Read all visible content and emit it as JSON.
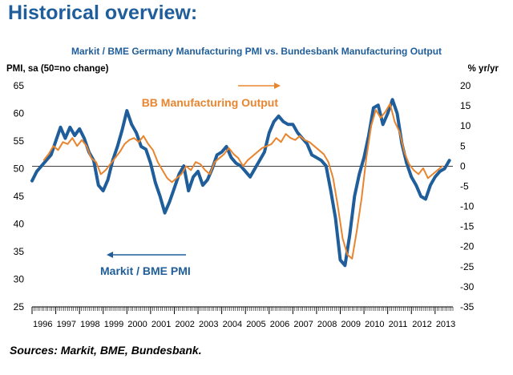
{
  "page": {
    "heading": "Historical overview:",
    "sources": "Sources: Markit, BME, Bundesbank."
  },
  "chart_data": {
    "type": "line",
    "title": "Markit / BME Germany Manufacturing PMI vs. Bundesbank Manufacturing Output",
    "ylabel": "PMI, sa (50=no change)",
    "y2label": "% yr/yr",
    "ylim": [
      25,
      65
    ],
    "y2lim": [
      -35,
      20
    ],
    "yticks": [
      "25",
      "30",
      "35",
      "40",
      "45",
      "50",
      "55",
      "60",
      "65"
    ],
    "y2ticks": [
      "-35",
      "-30",
      "-25",
      "-20",
      "-15",
      "-10",
      "-5",
      "0",
      "5",
      "10",
      "15",
      "20"
    ],
    "xlim": [
      1996.0,
      2013.75
    ],
    "xticks": [
      "1996",
      "1997",
      "1998",
      "1999",
      "2000",
      "2001",
      "2002",
      "2003",
      "2004",
      "2005",
      "2006",
      "2007",
      "2008",
      "2009",
      "2010",
      "2011",
      "2012",
      "2013"
    ],
    "series": [
      {
        "name": "Markit / BME PMI",
        "axis": "left",
        "color": "#1f5e9a",
        "label": "Markit / BME PMI",
        "label_arrow": "left",
        "x": [
          1996.0,
          1996.2,
          1996.4,
          1996.6,
          1996.8,
          1997.0,
          1997.2,
          1997.4,
          1997.6,
          1997.8,
          1998.0,
          1998.2,
          1998.4,
          1998.6,
          1998.8,
          1999.0,
          1999.2,
          1999.4,
          1999.6,
          1999.8,
          2000.0,
          2000.2,
          2000.4,
          2000.6,
          2000.8,
          2001.0,
          2001.2,
          2001.4,
          2001.6,
          2001.8,
          2002.0,
          2002.2,
          2002.4,
          2002.6,
          2002.8,
          2003.0,
          2003.2,
          2003.4,
          2003.6,
          2003.8,
          2004.0,
          2004.2,
          2004.4,
          2004.6,
          2004.8,
          2005.0,
          2005.2,
          2005.4,
          2005.6,
          2005.8,
          2006.0,
          2006.2,
          2006.4,
          2006.6,
          2006.8,
          2007.0,
          2007.2,
          2007.4,
          2007.6,
          2007.8,
          2008.0,
          2008.2,
          2008.4,
          2008.6,
          2008.8,
          2009.0,
          2009.2,
          2009.4,
          2009.6,
          2009.8,
          2010.0,
          2010.2,
          2010.4,
          2010.6,
          2010.8,
          2011.0,
          2011.2,
          2011.4,
          2011.6,
          2011.8,
          2012.0,
          2012.2,
          2012.4,
          2012.6,
          2012.8,
          2013.0,
          2013.2,
          2013.4,
          2013.6
        ],
        "values": [
          47.8,
          49.5,
          50.5,
          51.5,
          52.5,
          55.0,
          57.5,
          55.5,
          57.5,
          56.0,
          57.2,
          55.5,
          53.0,
          51.5,
          47.0,
          46.0,
          48.0,
          51.5,
          54.0,
          57.0,
          60.5,
          58.0,
          56.5,
          54.0,
          53.5,
          51.0,
          47.5,
          45.0,
          42.0,
          44.0,
          46.5,
          49.0,
          50.5,
          46.0,
          48.5,
          49.5,
          47.0,
          48.0,
          50.0,
          52.5,
          53.0,
          54.0,
          52.0,
          51.0,
          50.5,
          49.5,
          48.5,
          50.0,
          51.5,
          53.0,
          56.5,
          58.5,
          59.5,
          58.5,
          58.0,
          58.0,
          56.5,
          55.5,
          54.5,
          52.5,
          52.0,
          51.5,
          50.5,
          46.0,
          41.0,
          33.5,
          32.5,
          38.0,
          45.0,
          49.0,
          52.0,
          56.0,
          61.0,
          61.5,
          58.0,
          60.0,
          62.5,
          60.0,
          54.5,
          51.0,
          48.5,
          47.0,
          45.0,
          44.5,
          47.0,
          48.5,
          49.5,
          50.0,
          51.5
        ]
      },
      {
        "name": "BB Manufacturing Output",
        "axis": "right",
        "color": "#e8852f",
        "label": "BB Manufacturing Output",
        "label_arrow": "right",
        "x": [
          1996.5,
          1996.7,
          1996.9,
          1997.1,
          1997.3,
          1997.5,
          1997.7,
          1997.9,
          1998.1,
          1998.3,
          1998.5,
          1998.7,
          1998.9,
          1999.1,
          1999.3,
          1999.5,
          1999.7,
          1999.9,
          2000.1,
          2000.3,
          2000.5,
          2000.7,
          2000.9,
          2001.1,
          2001.3,
          2001.5,
          2001.7,
          2001.9,
          2002.1,
          2002.3,
          2002.5,
          2002.7,
          2002.9,
          2003.1,
          2003.3,
          2003.5,
          2003.7,
          2003.9,
          2004.1,
          2004.3,
          2004.5,
          2004.7,
          2004.9,
          2005.1,
          2005.3,
          2005.5,
          2005.7,
          2005.9,
          2006.1,
          2006.3,
          2006.5,
          2006.7,
          2006.9,
          2007.1,
          2007.3,
          2007.5,
          2007.7,
          2007.9,
          2008.1,
          2008.3,
          2008.5,
          2008.7,
          2008.9,
          2009.1,
          2009.3,
          2009.5,
          2009.7,
          2009.9,
          2010.1,
          2010.3,
          2010.5,
          2010.7,
          2010.9,
          2011.1,
          2011.3,
          2011.5,
          2011.7,
          2011.9,
          2012.1,
          2012.3,
          2012.5,
          2012.7,
          2012.9,
          2013.1,
          2013.3
        ],
        "values": [
          1.5,
          3.0,
          5.0,
          4.0,
          6.0,
          5.5,
          7.0,
          5.0,
          6.5,
          5.0,
          2.0,
          1.0,
          -2.0,
          -1.0,
          0.5,
          2.0,
          3.5,
          5.5,
          6.5,
          7.0,
          6.0,
          7.5,
          5.5,
          4.0,
          1.0,
          -1.0,
          -3.0,
          -4.0,
          -3.0,
          -2.0,
          0.0,
          -1.0,
          1.0,
          0.5,
          -1.0,
          -2.0,
          1.0,
          2.0,
          3.0,
          4.5,
          3.0,
          2.0,
          0.0,
          1.5,
          2.5,
          3.5,
          4.5,
          5.0,
          5.5,
          7.0,
          6.0,
          8.0,
          7.0,
          6.5,
          7.5,
          6.5,
          6.0,
          5.0,
          4.0,
          3.0,
          1.0,
          -3.0,
          -10.0,
          -18.0,
          -22.0,
          -23.0,
          -16.0,
          -8.0,
          2.0,
          10.0,
          14.0,
          12.0,
          13.5,
          15.5,
          11.0,
          8.5,
          3.5,
          0.5,
          -1.0,
          -2.0,
          -0.5,
          -3.0,
          -2.0,
          -1.0,
          0.0
        ]
      }
    ]
  }
}
